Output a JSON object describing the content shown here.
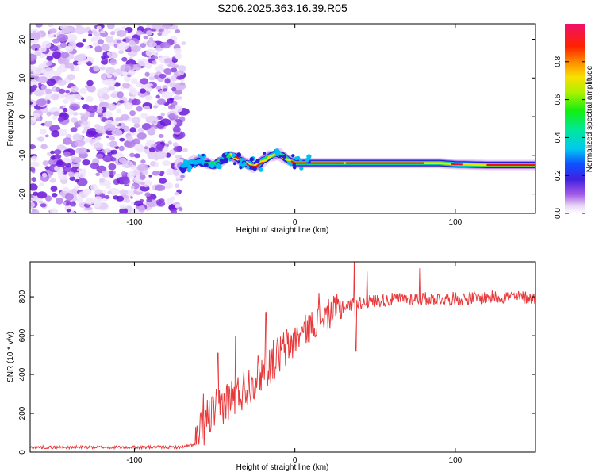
{
  "title": "S206.2025.363.16.39.R05",
  "chart_data": [
    {
      "type": "heatmap",
      "xlabel": "Height of straight line (km)",
      "ylabel": "Frequency (Hz)",
      "xlim": [
        -165,
        150
      ],
      "ylim": [
        -25,
        24
      ],
      "xticks": [
        -100,
        0,
        100
      ],
      "yticks": [
        -20,
        -10,
        0,
        10,
        20
      ],
      "noise_region_x": [
        -165,
        -70
      ],
      "ridge": {
        "x": [
          -70,
          -65,
          -60,
          -55,
          -50,
          -45,
          -40,
          -35,
          -30,
          -25,
          -20,
          -15,
          -10,
          -5,
          0,
          10,
          20,
          30,
          40,
          50,
          60,
          70,
          80,
          90,
          100,
          110,
          120,
          130,
          140,
          150
        ],
        "freq": [
          -13,
          -12,
          -11.5,
          -12,
          -12.5,
          -11,
          -10,
          -11,
          -12,
          -13,
          -11.5,
          -10,
          -9.5,
          -11,
          -12,
          -12,
          -12,
          -12,
          -12,
          -12,
          -12,
          -12,
          -12,
          -12,
          -12.3,
          -12.4,
          -12.5,
          -12.5,
          -12.5,
          -12.5
        ]
      },
      "colorbar": {
        "label": "Normalized spectral amplitude",
        "range": [
          0,
          1
        ],
        "ticks": [
          0.0,
          0.2,
          0.4,
          0.6,
          0.8
        ]
      }
    },
    {
      "type": "line",
      "color": "#e8383a",
      "xlabel": "Height of straight line (km)",
      "ylabel": "SNR (10 * v/v)",
      "xlim": [
        -165,
        150
      ],
      "ylim": [
        0,
        980
      ],
      "xticks": [
        -100,
        0,
        100
      ],
      "yticks": [
        0,
        200,
        400,
        600,
        800
      ],
      "anchors": [
        {
          "x": -165,
          "y": 25
        },
        {
          "x": -70,
          "y": 25
        },
        {
          "x": -62,
          "y": 40
        },
        {
          "x": -55,
          "y": 170
        },
        {
          "x": -45,
          "y": 250
        },
        {
          "x": -35,
          "y": 300
        },
        {
          "x": -25,
          "y": 380
        },
        {
          "x": -15,
          "y": 460
        },
        {
          "x": -5,
          "y": 540
        },
        {
          "x": 5,
          "y": 620
        },
        {
          "x": 15,
          "y": 680
        },
        {
          "x": 25,
          "y": 730
        },
        {
          "x": 35,
          "y": 760
        },
        {
          "x": 50,
          "y": 780
        },
        {
          "x": 70,
          "y": 790
        },
        {
          "x": 100,
          "y": 790
        },
        {
          "x": 130,
          "y": 800
        },
        {
          "x": 150,
          "y": 795
        }
      ],
      "spikes": [
        {
          "x": -57,
          "y": 300
        },
        {
          "x": -48,
          "y": 510
        },
        {
          "x": -37,
          "y": 600
        },
        {
          "x": -18,
          "y": 720
        },
        {
          "x": 15,
          "y": 820
        },
        {
          "x": 37,
          "y": 980
        },
        {
          "x": 45,
          "y": 930
        },
        {
          "x": 78,
          "y": 945
        },
        {
          "x": 38,
          "y": 520
        }
      ]
    }
  ]
}
